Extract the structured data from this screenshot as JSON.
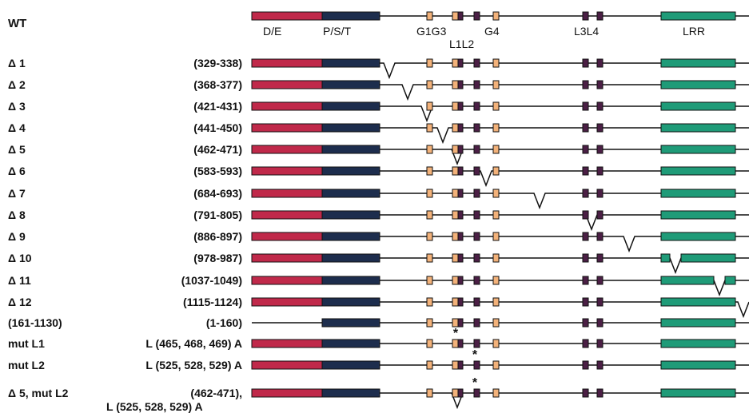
{
  "colors": {
    "de": "#c0294a",
    "pst": "#1d2d4d",
    "g_box": "#f3b27a",
    "l_box": "#4b1f45",
    "lrr": "#1f9b78",
    "line": "#111111",
    "text": "#111111"
  },
  "wt_label": "WT",
  "domain_labels": {
    "de": "D/E",
    "pst": "P/S/T",
    "g1g3": "G1G3",
    "g4": "G4",
    "l1l2": "L1L2",
    "l3l4": "L3L4",
    "lrr": "LRR"
  },
  "rows": [
    {
      "name": "Δ 1",
      "range": "(329-338)"
    },
    {
      "name": "Δ 2",
      "range": "(368-377)"
    },
    {
      "name": "Δ 3",
      "range": "(421-431)"
    },
    {
      "name": "Δ 4",
      "range": "(441-450)"
    },
    {
      "name": "Δ 5",
      "range": "(462-471)"
    },
    {
      "name": "Δ 6",
      "range": "(583-593)"
    },
    {
      "name": "Δ 7",
      "range": "(684-693)"
    },
    {
      "name": "Δ 8",
      "range": "(791-805)"
    },
    {
      "name": "Δ 9",
      "range": "(886-897)"
    },
    {
      "name": "Δ 10",
      "range": "(978-987)"
    },
    {
      "name": "Δ 11",
      "range": "(1037-1049)"
    },
    {
      "name": "Δ 12",
      "range": "(1115-1124)"
    },
    {
      "name": "(161-1130)",
      "range": "(1-160)"
    },
    {
      "name": "mut L1",
      "range": "L (465, 468, 469) A"
    },
    {
      "name": "mut L2",
      "range": "L (525, 528, 529) A"
    },
    {
      "name": "Δ 5, mut L2",
      "range": "(462-471),"
    }
  ],
  "last_row_range_line2": "L (525, 528, 529) A",
  "mutation_mark": "*"
}
